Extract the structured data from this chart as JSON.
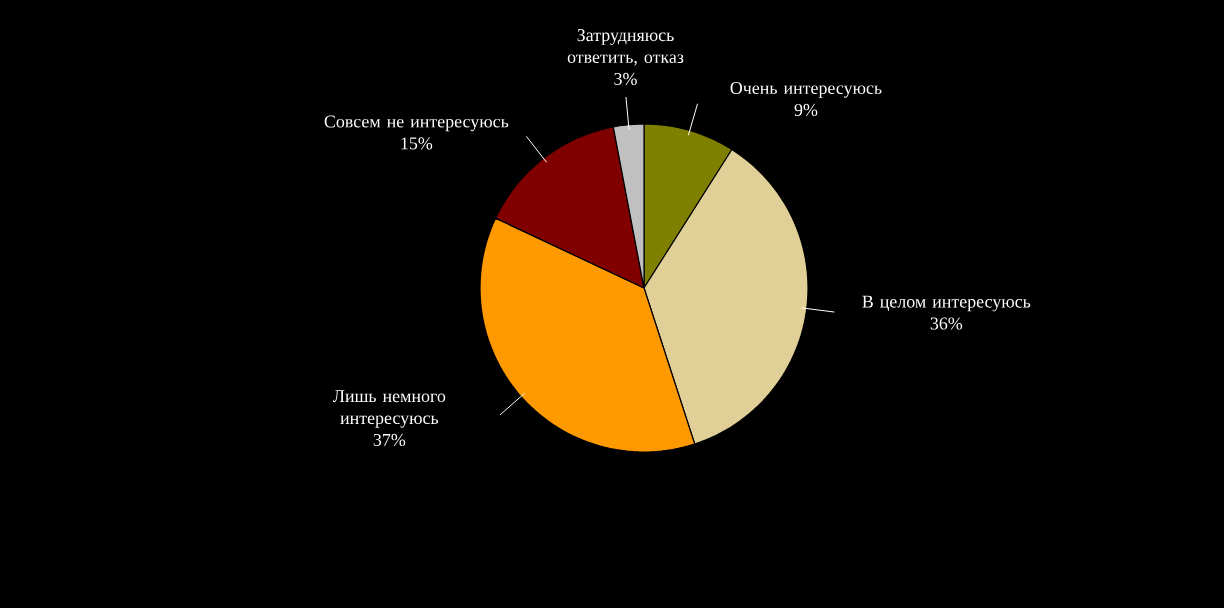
{
  "chart_data": {
    "type": "pie",
    "categories": [
      "Очень интересуюсь",
      "В целом интересуюсь",
      "Лишь немного интересуюсь",
      "Совсем не интересуюсь",
      "Затрудняюсь ответить, отказ"
    ],
    "values": [
      9,
      36,
      37,
      15,
      3
    ],
    "value_labels": [
      "9%",
      "36%",
      "37%",
      "15%",
      "3%"
    ],
    "colors": [
      "#808000",
      "#e0d098",
      "#ff9900",
      "#800000",
      "#c0c0c0"
    ]
  }
}
